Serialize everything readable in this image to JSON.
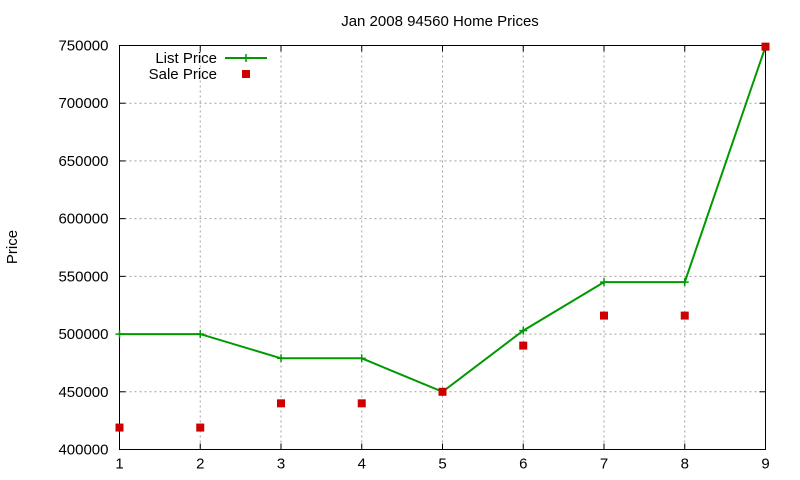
{
  "chart_data": {
    "type": "line",
    "title": "Jan 2008 94560 Home Prices",
    "xlabel": "",
    "ylabel": "Price",
    "x": [
      1,
      2,
      3,
      4,
      5,
      6,
      7,
      8,
      9
    ],
    "xlim": [
      1,
      9
    ],
    "ylim": [
      400000,
      750000
    ],
    "xticks": [
      "1",
      "2",
      "3",
      "4",
      "5",
      "6",
      "7",
      "8",
      "9"
    ],
    "yticks": [
      "400000",
      "450000",
      "500000",
      "550000",
      "600000",
      "650000",
      "700000",
      "750000"
    ],
    "grid": true,
    "legend_position": "top-left",
    "series": [
      {
        "name": "List Price",
        "style": "linespoints",
        "marker": "plus",
        "color": "#009900",
        "values": [
          500000,
          500000,
          479000,
          479000,
          450000,
          503000,
          545000,
          545000,
          749000
        ]
      },
      {
        "name": "Sale Price",
        "style": "points",
        "marker": "square",
        "color": "#cc0000",
        "values": [
          419000,
          419000,
          440000,
          440000,
          450000,
          490000,
          516000,
          516000,
          749000
        ]
      }
    ]
  }
}
